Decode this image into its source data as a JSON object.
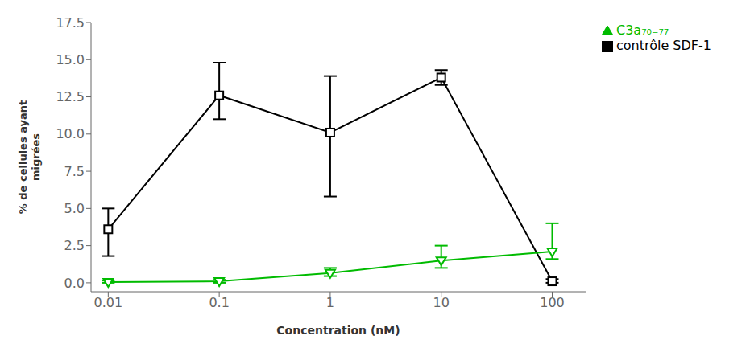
{
  "chart_data": {
    "type": "line",
    "log": "x",
    "grid": false,
    "legend": "right",
    "xlabel": "Concentration (nM)",
    "ylabel": "% de cellules ayant\nmigrées",
    "x": [
      0.01,
      0.1,
      1,
      10,
      100
    ],
    "xlim": [
      0.007,
      200
    ],
    "xticks": [
      0.01,
      0.1,
      1,
      10,
      100
    ],
    "ylim": [
      -0.6,
      17.5
    ],
    "yticks": [
      {
        "value": 0.0,
        "label": "0.0"
      },
      2.5,
      {
        "value": 5.0,
        "label": "5.0"
      },
      7.5,
      {
        "value": 10.0,
        "label": "10.0"
      },
      12.5,
      {
        "value": 15.0,
        "label": "15.0"
      },
      17.5
    ],
    "series": [
      {
        "name": "contrôle SDF-1",
        "color": "#000000",
        "marker": "square",
        "values": [
          3.6,
          12.6,
          10.1,
          13.8,
          0.1
        ],
        "yerr_lower": [
          1.8,
          1.6,
          4.3,
          0.5,
          0.1
        ],
        "yerr_upper": [
          1.4,
          2.2,
          3.8,
          0.5,
          0.15
        ]
      },
      {
        "name": "C3a₇₀₋₇₇",
        "color": "#00bb00",
        "marker": "triangle-down",
        "values": [
          0.05,
          0.1,
          0.65,
          1.5,
          2.1
        ],
        "yerr_lower": [
          0.05,
          0.1,
          0.2,
          0.5,
          0.5
        ],
        "yerr_upper": [
          0.1,
          0.1,
          0.35,
          1.0,
          1.9
        ]
      }
    ]
  }
}
